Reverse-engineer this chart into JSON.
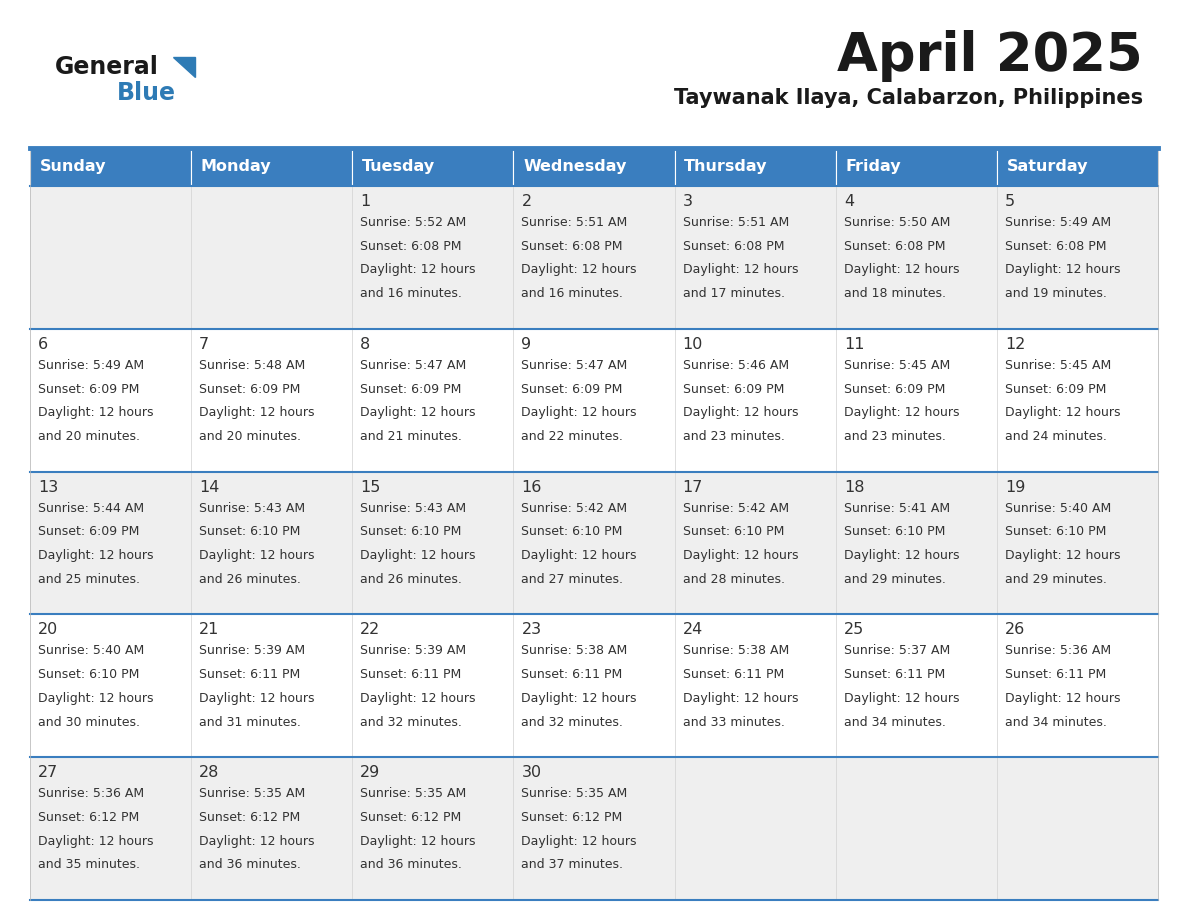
{
  "title": "April 2025",
  "subtitle": "Taywanak Ilaya, Calabarzon, Philippines",
  "days_of_week": [
    "Sunday",
    "Monday",
    "Tuesday",
    "Wednesday",
    "Thursday",
    "Friday",
    "Saturday"
  ],
  "header_bg": "#3A7EBF",
  "header_text_color": "#FFFFFF",
  "cell_bg_light": "#EFEFEF",
  "cell_bg_white": "#FFFFFF",
  "separator_color": "#3A7EBF",
  "text_color": "#333333",
  "title_color": "#1a1a1a",
  "logo_black": "#1a1a1a",
  "logo_blue": "#2E7BB5",
  "calendar_data": [
    [
      null,
      null,
      {
        "day": 1,
        "sunrise": "5:52 AM",
        "sunset": "6:08 PM",
        "daylight": "12 hours and 16 minutes."
      },
      {
        "day": 2,
        "sunrise": "5:51 AM",
        "sunset": "6:08 PM",
        "daylight": "12 hours and 16 minutes."
      },
      {
        "day": 3,
        "sunrise": "5:51 AM",
        "sunset": "6:08 PM",
        "daylight": "12 hours and 17 minutes."
      },
      {
        "day": 4,
        "sunrise": "5:50 AM",
        "sunset": "6:08 PM",
        "daylight": "12 hours and 18 minutes."
      },
      {
        "day": 5,
        "sunrise": "5:49 AM",
        "sunset": "6:08 PM",
        "daylight": "12 hours and 19 minutes."
      }
    ],
    [
      {
        "day": 6,
        "sunrise": "5:49 AM",
        "sunset": "6:09 PM",
        "daylight": "12 hours and 20 minutes."
      },
      {
        "day": 7,
        "sunrise": "5:48 AM",
        "sunset": "6:09 PM",
        "daylight": "12 hours and 20 minutes."
      },
      {
        "day": 8,
        "sunrise": "5:47 AM",
        "sunset": "6:09 PM",
        "daylight": "12 hours and 21 minutes."
      },
      {
        "day": 9,
        "sunrise": "5:47 AM",
        "sunset": "6:09 PM",
        "daylight": "12 hours and 22 minutes."
      },
      {
        "day": 10,
        "sunrise": "5:46 AM",
        "sunset": "6:09 PM",
        "daylight": "12 hours and 23 minutes."
      },
      {
        "day": 11,
        "sunrise": "5:45 AM",
        "sunset": "6:09 PM",
        "daylight": "12 hours and 23 minutes."
      },
      {
        "day": 12,
        "sunrise": "5:45 AM",
        "sunset": "6:09 PM",
        "daylight": "12 hours and 24 minutes."
      }
    ],
    [
      {
        "day": 13,
        "sunrise": "5:44 AM",
        "sunset": "6:09 PM",
        "daylight": "12 hours and 25 minutes."
      },
      {
        "day": 14,
        "sunrise": "5:43 AM",
        "sunset": "6:10 PM",
        "daylight": "12 hours and 26 minutes."
      },
      {
        "day": 15,
        "sunrise": "5:43 AM",
        "sunset": "6:10 PM",
        "daylight": "12 hours and 26 minutes."
      },
      {
        "day": 16,
        "sunrise": "5:42 AM",
        "sunset": "6:10 PM",
        "daylight": "12 hours and 27 minutes."
      },
      {
        "day": 17,
        "sunrise": "5:42 AM",
        "sunset": "6:10 PM",
        "daylight": "12 hours and 28 minutes."
      },
      {
        "day": 18,
        "sunrise": "5:41 AM",
        "sunset": "6:10 PM",
        "daylight": "12 hours and 29 minutes."
      },
      {
        "day": 19,
        "sunrise": "5:40 AM",
        "sunset": "6:10 PM",
        "daylight": "12 hours and 29 minutes."
      }
    ],
    [
      {
        "day": 20,
        "sunrise": "5:40 AM",
        "sunset": "6:10 PM",
        "daylight": "12 hours and 30 minutes."
      },
      {
        "day": 21,
        "sunrise": "5:39 AM",
        "sunset": "6:11 PM",
        "daylight": "12 hours and 31 minutes."
      },
      {
        "day": 22,
        "sunrise": "5:39 AM",
        "sunset": "6:11 PM",
        "daylight": "12 hours and 32 minutes."
      },
      {
        "day": 23,
        "sunrise": "5:38 AM",
        "sunset": "6:11 PM",
        "daylight": "12 hours and 32 minutes."
      },
      {
        "day": 24,
        "sunrise": "5:38 AM",
        "sunset": "6:11 PM",
        "daylight": "12 hours and 33 minutes."
      },
      {
        "day": 25,
        "sunrise": "5:37 AM",
        "sunset": "6:11 PM",
        "daylight": "12 hours and 34 minutes."
      },
      {
        "day": 26,
        "sunrise": "5:36 AM",
        "sunset": "6:11 PM",
        "daylight": "12 hours and 34 minutes."
      }
    ],
    [
      {
        "day": 27,
        "sunrise": "5:36 AM",
        "sunset": "6:12 PM",
        "daylight": "12 hours and 35 minutes."
      },
      {
        "day": 28,
        "sunrise": "5:35 AM",
        "sunset": "6:12 PM",
        "daylight": "12 hours and 36 minutes."
      },
      {
        "day": 29,
        "sunrise": "5:35 AM",
        "sunset": "6:12 PM",
        "daylight": "12 hours and 36 minutes."
      },
      {
        "day": 30,
        "sunrise": "5:35 AM",
        "sunset": "6:12 PM",
        "daylight": "12 hours and 37 minutes."
      },
      null,
      null,
      null
    ]
  ]
}
